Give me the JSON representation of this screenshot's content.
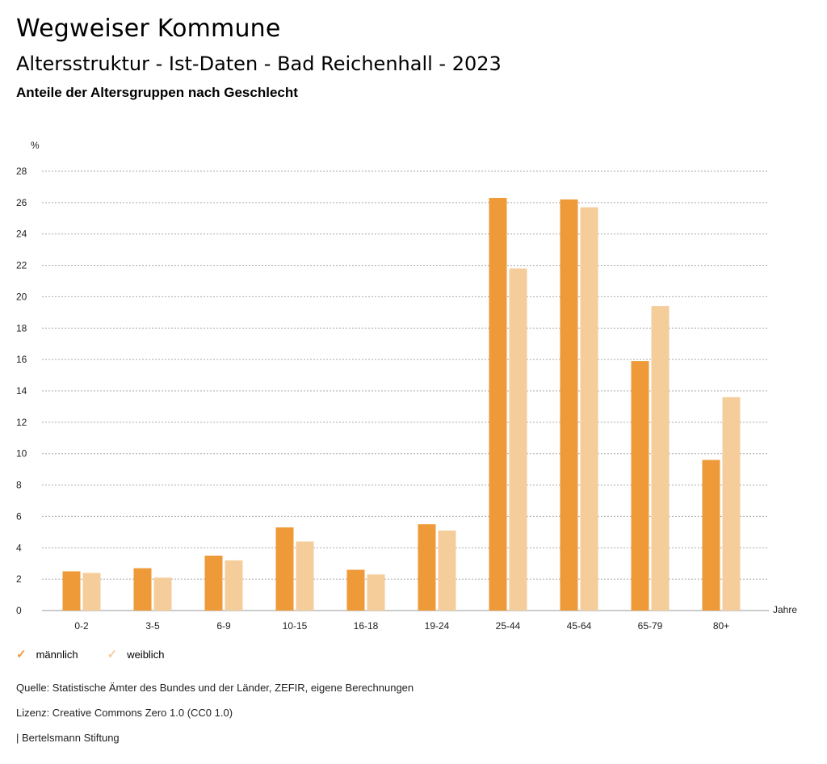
{
  "header": {
    "title": "Wegweiser Kommune",
    "subtitle": "Altersstruktur - Ist-Daten - Bad Reichenhall - 2023",
    "chart_heading": "Anteile der Altersgruppen nach Geschlecht"
  },
  "colors": {
    "male": "#ee9a38",
    "female": "#f5cd9b",
    "grid": "#aaaaaa"
  },
  "chart_data": {
    "type": "bar",
    "title": "Anteile der Altersgruppen nach Geschlecht",
    "ylabel": "%",
    "xlabel": "Jahre",
    "ylim": [
      0,
      28
    ],
    "yticks": [
      0,
      2,
      4,
      6,
      8,
      10,
      12,
      14,
      16,
      18,
      20,
      22,
      24,
      26,
      28
    ],
    "grid": true,
    "categories": [
      "0-2",
      "3-5",
      "6-9",
      "10-15",
      "16-18",
      "19-24",
      "25-44",
      "45-64",
      "65-79",
      "80+"
    ],
    "series": [
      {
        "name": "männlich",
        "values": [
          2.5,
          2.7,
          3.5,
          5.3,
          2.6,
          5.5,
          26.3,
          26.2,
          15.9,
          9.6
        ]
      },
      {
        "name": "weiblich",
        "values": [
          2.4,
          2.1,
          3.2,
          4.4,
          2.3,
          5.1,
          21.8,
          25.7,
          19.4,
          13.6
        ]
      }
    ],
    "legend": "bottom-left"
  },
  "footer": {
    "source": "Quelle: Statistische Ämter des Bundes und der Länder, ZEFIR, eigene Berechnungen",
    "license": "Lizenz: Creative Commons Zero 1.0 (CC0 1.0)",
    "brand": "| Bertelsmann Stiftung"
  }
}
